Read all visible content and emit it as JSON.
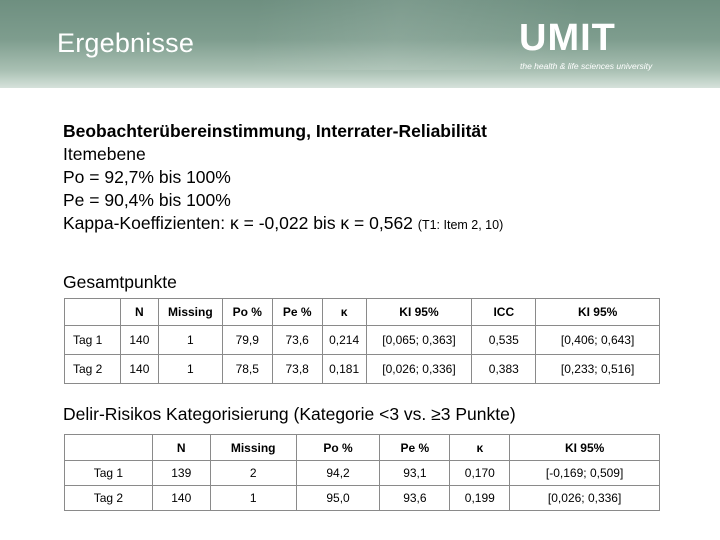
{
  "slide": {
    "title": "Ergebnisse",
    "logo": {
      "word": "UMIT",
      "tagline": "the health & life sciences university"
    }
  },
  "text": {
    "heading": "Beobachterübereinstimmung, Interrater-Reliabilität",
    "item_level": "Itemebene",
    "po": "Po = 92,7% bis 100%",
    "pe": "Pe = 90,4% bis 100%",
    "kappa": "Kappa-Koeffizienten: κ = -0,022 bis κ = 0,562",
    "kappa_note": "(T1: Item 2, 10)"
  },
  "table1": {
    "label": "Gesamtpunkte",
    "headers": [
      "",
      "N",
      "Missing",
      "Po %",
      "Pe %",
      "κ",
      "KI 95%",
      "ICC",
      "KI 95%"
    ],
    "rows": [
      [
        "Tag 1",
        "140",
        "1",
        "79,9",
        "73,6",
        "0,214",
        "[0,065; 0,363]",
        "0,535",
        "[0,406; 0,643]"
      ],
      [
        "Tag 2",
        "140",
        "1",
        "78,5",
        "73,8",
        "0,181",
        "[0,026; 0,336]",
        "0,383",
        "[0,233; 0,516]"
      ]
    ]
  },
  "table2": {
    "label": "Delir-Risikos Kategorisierung (Kategorie <3 vs. ≥3 Punkte)",
    "headers": [
      "",
      "N",
      "Missing",
      "Po %",
      "Pe %",
      "κ",
      "KI 95%"
    ],
    "rows": [
      [
        "Tag 1",
        "139",
        "2",
        "94,2",
        "93,1",
        "0,170",
        "[-0,169; 0,509]"
      ],
      [
        "Tag 2",
        "140",
        "1",
        "95,0",
        "93,6",
        "0,199",
        "[0,026; 0,336]"
      ]
    ]
  }
}
